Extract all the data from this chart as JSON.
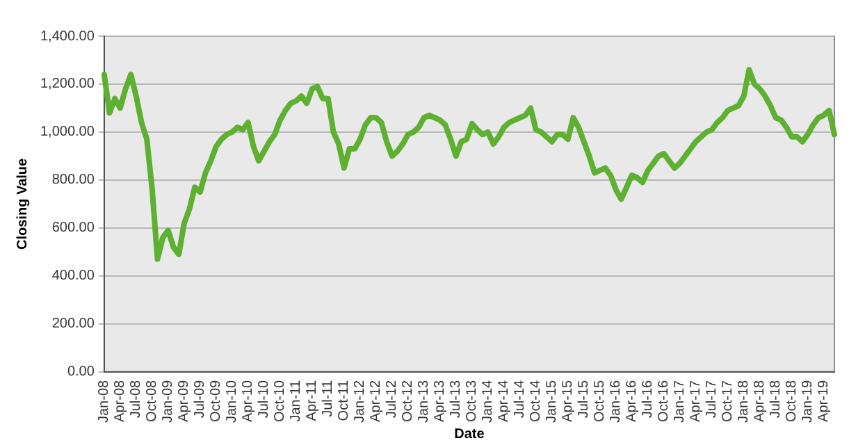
{
  "chart_data": {
    "type": "line",
    "xlabel": "Date",
    "ylabel": "Closing Value",
    "categories": [
      "Jan-08",
      null,
      null,
      "Apr-08",
      null,
      null,
      "Jul-08",
      null,
      null,
      "Oct-08",
      null,
      null,
      "Jan-09",
      null,
      null,
      "Apr-09",
      null,
      null,
      "Jul-09",
      null,
      null,
      "Oct-09",
      null,
      null,
      "Jan-10",
      null,
      null,
      "Apr-10",
      null,
      null,
      "Jul-10",
      null,
      null,
      "Oct-10",
      null,
      null,
      "Jan-11",
      null,
      null,
      "Apr-11",
      null,
      null,
      "Jul-11",
      null,
      null,
      "Oct-11",
      null,
      null,
      "Jan-12",
      null,
      null,
      "Apr-12",
      null,
      null,
      "Jul-12",
      null,
      null,
      "Oct-12",
      null,
      null,
      "Jan-13",
      null,
      null,
      "Apr-13",
      null,
      null,
      "Jul-13",
      null,
      null,
      "Oct-13",
      null,
      null,
      "Jan-14",
      null,
      null,
      "Apr-14",
      null,
      null,
      "Jul-14",
      null,
      null,
      "Oct-14",
      null,
      null,
      "Jan-15",
      null,
      null,
      "Apr-15",
      null,
      null,
      "Jul-15",
      null,
      null,
      "Oct-15",
      null,
      null,
      "Jan-16",
      null,
      null,
      "Apr-16",
      null,
      null,
      "Jul-16",
      null,
      null,
      "Oct-16",
      null,
      null,
      "Jan-17",
      null,
      null,
      "Apr-17",
      null,
      null,
      "Jul-17",
      null,
      null,
      "Oct-17",
      null,
      null,
      "Jan-18",
      null,
      null,
      "Apr-18",
      null,
      null,
      "Jul-18",
      null,
      null,
      "Oct-18",
      null,
      null,
      "Jan-19",
      null,
      null,
      "Apr-19",
      null,
      null
    ],
    "series": [
      {
        "color": "#5db030",
        "values": [
          1240,
          1080,
          1140,
          1100,
          1180,
          1240,
          1150,
          1040,
          970,
          760,
          470,
          560,
          590,
          520,
          490,
          620,
          680,
          770,
          750,
          830,
          880,
          940,
          970,
          990,
          1000,
          1020,
          1010,
          1040,
          940,
          880,
          920,
          960,
          990,
          1050,
          1090,
          1120,
          1130,
          1150,
          1120,
          1180,
          1190,
          1140,
          1140,
          1000,
          950,
          850,
          930,
          930,
          970,
          1030,
          1060,
          1060,
          1040,
          960,
          900,
          920,
          950,
          990,
          1000,
          1020,
          1060,
          1070,
          1060,
          1050,
          1030,
          970,
          900,
          960,
          970,
          1035,
          1010,
          990,
          1000,
          950,
          980,
          1020,
          1040,
          1050,
          1060,
          1070,
          1100,
          1010,
          1000,
          980,
          960,
          990,
          990,
          970,
          1060,
          1020,
          960,
          900,
          830,
          840,
          850,
          820,
          760,
          720,
          770,
          820,
          810,
          790,
          840,
          870,
          900,
          910,
          880,
          850,
          870,
          900,
          930,
          960,
          980,
          1000,
          1010,
          1040,
          1060,
          1090,
          1100,
          1110,
          1150,
          1260,
          1200,
          1180,
          1150,
          1110,
          1060,
          1050,
          1020,
          980,
          980,
          960,
          990,
          1030,
          1060,
          1070,
          1090,
          990
        ]
      }
    ],
    "ylim": [
      0,
      1400
    ],
    "yticks": [
      {
        "value": 0,
        "label": "0.00"
      },
      {
        "value": 200,
        "label": "200.00"
      },
      {
        "value": 400,
        "label": "400.00"
      },
      {
        "value": 600,
        "label": "600.00"
      },
      {
        "value": 800,
        "label": "800.00"
      },
      {
        "value": 1000,
        "label": "1,000.00"
      },
      {
        "value": 1200,
        "label": "1,200.00"
      },
      {
        "value": 1400,
        "label": "1,400.00"
      }
    ],
    "grid": "y",
    "legend": false,
    "marker": "none",
    "line_style": "solid"
  }
}
